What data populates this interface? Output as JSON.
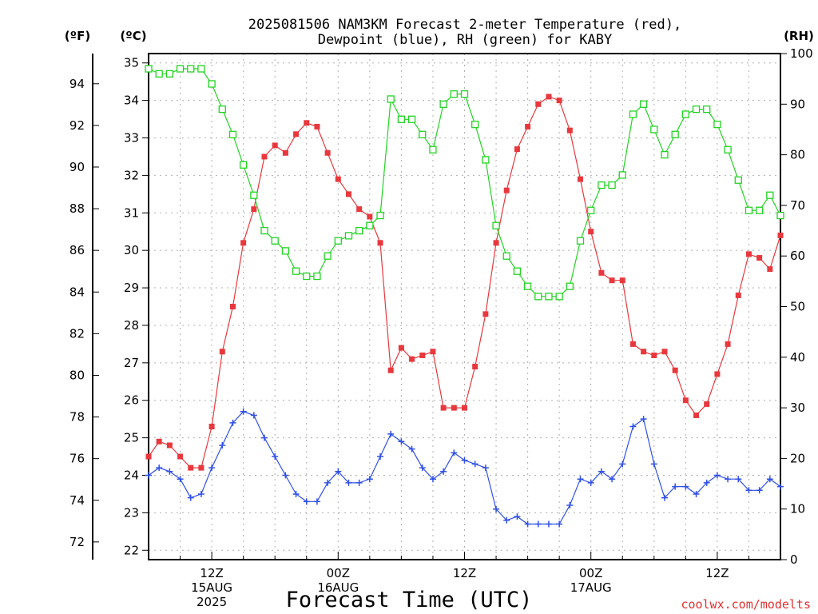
{
  "chart_data": {
    "type": "line",
    "title_line1": "2025081506 NAM3KM Forecast 2-meter Temperature (red),",
    "title_line2": "Dewpoint (blue), RH (green) for KABY",
    "y_left_outer_label": "(ºF)",
    "y_left_inner_label": "(ºC)",
    "y_right_label": "(RH)",
    "xlabel": "Forecast Time (UTC)",
    "credit": "coolwx.com/modelts",
    "x_tick_labels": [
      {
        "hour": 6,
        "lines": [
          "12Z",
          "15AUG",
          "2025"
        ]
      },
      {
        "hour": 18,
        "lines": [
          "00Z",
          "16AUG"
        ]
      },
      {
        "hour": 30,
        "lines": [
          "12Z"
        ]
      },
      {
        "hour": 42,
        "lines": [
          "00Z",
          "17AUG"
        ]
      },
      {
        "hour": 54,
        "lines": [
          "12Z"
        ]
      }
    ],
    "x_range_hours": [
      0,
      60
    ],
    "y_celsius_range": [
      21.75,
      35.25
    ],
    "y_celsius_ticks": [
      22,
      23,
      24,
      25,
      26,
      27,
      28,
      29,
      30,
      31,
      32,
      33,
      34,
      35
    ],
    "y_fahrenheit_ticks": [
      72,
      74,
      76,
      78,
      80,
      82,
      84,
      86,
      88,
      90,
      92,
      94
    ],
    "y_rh_range": [
      0,
      100
    ],
    "y_rh_ticks": [
      0,
      10,
      20,
      30,
      40,
      50,
      60,
      70,
      80,
      90,
      100
    ],
    "grid": true,
    "x_hours": [
      0,
      1,
      2,
      3,
      4,
      5,
      6,
      7,
      8,
      9,
      10,
      11,
      12,
      13,
      14,
      15,
      16,
      17,
      18,
      19,
      20,
      21,
      22,
      23,
      24,
      25,
      26,
      27,
      28,
      29,
      30,
      31,
      32,
      33,
      34,
      35,
      36,
      37,
      38,
      39,
      40,
      41,
      42,
      43,
      44,
      45,
      46,
      47,
      48,
      49,
      50,
      51,
      52,
      53,
      54,
      55,
      56,
      57,
      58,
      59,
      60
    ],
    "series": [
      {
        "name": "Temperature",
        "axis": "celsius",
        "color": "#e8383d",
        "marker": "filled-square",
        "values": [
          24.5,
          24.9,
          24.8,
          24.5,
          24.2,
          24.2,
          25.3,
          27.3,
          28.5,
          30.2,
          31.1,
          32.5,
          32.8,
          32.6,
          33.1,
          33.4,
          33.3,
          32.6,
          31.9,
          31.5,
          31.1,
          30.9,
          30.2,
          26.8,
          27.4,
          27.1,
          27.2,
          27.3,
          25.8,
          25.8,
          25.8,
          26.9,
          28.3,
          30.2,
          31.6,
          32.7,
          33.3,
          33.9,
          34.1,
          34.0,
          33.2,
          31.9,
          30.5,
          29.4,
          29.2,
          29.2,
          27.5,
          27.3,
          27.2,
          27.3,
          26.8,
          26.0,
          25.6,
          25.9,
          26.7,
          27.5,
          28.8,
          29.9,
          29.8,
          29.5,
          30.4
        ]
      },
      {
        "name": "Dewpoint",
        "axis": "celsius",
        "color": "#3050e8",
        "marker": "plus",
        "values": [
          24.0,
          24.2,
          24.1,
          23.9,
          23.4,
          23.5,
          24.2,
          24.8,
          25.4,
          25.7,
          25.6,
          25.0,
          24.5,
          24.0,
          23.5,
          23.3,
          23.3,
          23.8,
          24.1,
          23.8,
          23.8,
          23.9,
          24.5,
          25.1,
          24.9,
          24.7,
          24.2,
          23.9,
          24.1,
          24.6,
          24.4,
          24.3,
          24.2,
          23.1,
          22.8,
          22.9,
          22.7,
          22.7,
          22.7,
          22.7,
          23.2,
          23.9,
          23.8,
          24.1,
          23.9,
          24.3,
          25.3,
          25.5,
          24.3,
          23.4,
          23.7,
          23.7,
          23.5,
          23.8,
          24.0,
          23.9,
          23.9,
          23.6,
          23.6,
          23.9,
          23.7
        ]
      },
      {
        "name": "RH",
        "axis": "rh",
        "color": "#22d422",
        "marker": "open-square",
        "values": [
          97,
          96,
          96,
          97,
          97,
          97,
          94,
          89,
          84,
          78,
          72,
          65,
          63,
          61,
          57,
          56,
          56,
          60,
          63,
          64,
          65,
          66,
          68,
          91,
          87,
          87,
          84,
          81,
          90,
          92,
          92,
          86,
          79,
          66,
          60,
          57,
          54,
          52,
          52,
          52,
          54,
          63,
          69,
          74,
          74,
          76,
          88,
          90,
          85,
          80,
          84,
          88,
          89,
          89,
          86,
          81,
          75,
          69,
          69,
          72,
          68
        ]
      }
    ]
  }
}
